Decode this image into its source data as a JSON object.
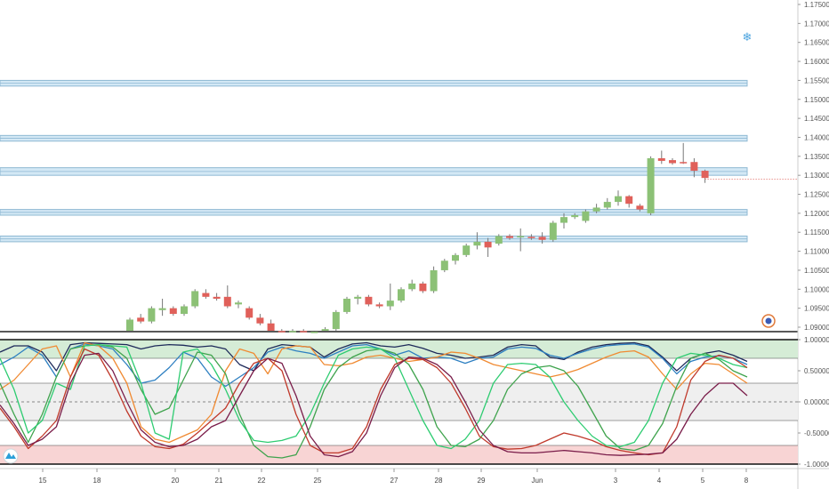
{
  "chart_data": [
    {
      "type": "candlestick",
      "title": "",
      "ylim": [
        1.0885,
        1.176
      ],
      "y_ticks": [
        "1.17500",
        "1.17000",
        "1.16500",
        "1.16000",
        "1.15500",
        "1.15000",
        "1.14500",
        "1.14000",
        "1.13500",
        "1.13000",
        "1.12500",
        "1.12000",
        "1.11500",
        "1.11000",
        "1.10500",
        "1.10000",
        "1.09500",
        "1.09000"
      ],
      "x_ticks": [
        "15",
        "18",
        "20",
        "21",
        "22",
        "25",
        "27",
        "28",
        "29",
        "Jun",
        "3",
        "4",
        "5",
        "8"
      ],
      "candles": [
        {
          "o": 1.089,
          "h": 1.0925,
          "l": 1.0885,
          "c": 1.092,
          "dir": "up"
        },
        {
          "o": 1.0925,
          "h": 1.0935,
          "l": 1.091,
          "c": 1.0915,
          "dir": "down"
        },
        {
          "o": 1.0915,
          "h": 1.0955,
          "l": 1.091,
          "c": 1.095,
          "dir": "up"
        },
        {
          "o": 1.0945,
          "h": 1.0975,
          "l": 1.093,
          "c": 1.095,
          "dir": "up"
        },
        {
          "o": 1.095,
          "h": 1.0955,
          "l": 1.093,
          "c": 1.0935,
          "dir": "down"
        },
        {
          "o": 1.0935,
          "h": 1.096,
          "l": 1.093,
          "c": 1.0955,
          "dir": "up"
        },
        {
          "o": 1.0955,
          "h": 1.1,
          "l": 1.095,
          "c": 1.0995,
          "dir": "up"
        },
        {
          "o": 1.099,
          "h": 1.1,
          "l": 1.0975,
          "c": 1.098,
          "dir": "down"
        },
        {
          "o": 1.098,
          "h": 1.099,
          "l": 1.097,
          "c": 1.0975,
          "dir": "down"
        },
        {
          "o": 1.098,
          "h": 1.101,
          "l": 1.095,
          "c": 1.0955,
          "dir": "down"
        },
        {
          "o": 1.096,
          "h": 1.097,
          "l": 1.095,
          "c": 1.0965,
          "dir": "up"
        },
        {
          "o": 1.095,
          "h": 1.0955,
          "l": 1.092,
          "c": 1.0925,
          "dir": "down"
        },
        {
          "o": 1.0925,
          "h": 1.0935,
          "l": 1.0905,
          "c": 1.091,
          "dir": "down"
        },
        {
          "o": 1.091,
          "h": 1.092,
          "l": 1.0885,
          "c": 1.089,
          "dir": "down"
        },
        {
          "o": 1.089,
          "h": 1.0895,
          "l": 1.088,
          "c": 1.0885,
          "dir": "down"
        },
        {
          "o": 1.0885,
          "h": 1.0895,
          "l": 1.088,
          "c": 1.089,
          "dir": "up"
        },
        {
          "o": 1.089,
          "h": 1.0895,
          "l": 1.088,
          "c": 1.0885,
          "dir": "down"
        },
        {
          "o": 1.0885,
          "h": 1.089,
          "l": 1.088,
          "c": 1.0888,
          "dir": "up"
        },
        {
          "o": 1.0888,
          "h": 1.09,
          "l": 1.088,
          "c": 1.0895,
          "dir": "up"
        },
        {
          "o": 1.0895,
          "h": 1.0945,
          "l": 1.089,
          "c": 1.094,
          "dir": "up"
        },
        {
          "o": 1.094,
          "h": 1.098,
          "l": 1.0935,
          "c": 1.0975,
          "dir": "up"
        },
        {
          "o": 1.0975,
          "h": 1.0985,
          "l": 1.096,
          "c": 1.098,
          "dir": "up"
        },
        {
          "o": 1.098,
          "h": 1.0985,
          "l": 1.0955,
          "c": 1.096,
          "dir": "down"
        },
        {
          "o": 1.096,
          "h": 1.0965,
          "l": 1.095,
          "c": 1.0955,
          "dir": "down"
        },
        {
          "o": 1.0955,
          "h": 1.1015,
          "l": 1.0945,
          "c": 1.097,
          "dir": "up"
        },
        {
          "o": 1.097,
          "h": 1.1005,
          "l": 1.0965,
          "c": 1.1,
          "dir": "up"
        },
        {
          "o": 1.1,
          "h": 1.1025,
          "l": 1.0995,
          "c": 1.1015,
          "dir": "up"
        },
        {
          "o": 1.1015,
          "h": 1.102,
          "l": 1.099,
          "c": 1.0995,
          "dir": "down"
        },
        {
          "o": 1.0995,
          "h": 1.106,
          "l": 1.099,
          "c": 1.105,
          "dir": "up"
        },
        {
          "o": 1.105,
          "h": 1.108,
          "l": 1.1045,
          "c": 1.1075,
          "dir": "up"
        },
        {
          "o": 1.1075,
          "h": 1.1095,
          "l": 1.1065,
          "c": 1.109,
          "dir": "up"
        },
        {
          "o": 1.109,
          "h": 1.112,
          "l": 1.1085,
          "c": 1.1115,
          "dir": "up"
        },
        {
          "o": 1.1115,
          "h": 1.115,
          "l": 1.1105,
          "c": 1.1125,
          "dir": "up"
        },
        {
          "o": 1.1125,
          "h": 1.1135,
          "l": 1.1085,
          "c": 1.111,
          "dir": "down"
        },
        {
          "o": 1.112,
          "h": 1.1145,
          "l": 1.1115,
          "c": 1.114,
          "dir": "up"
        },
        {
          "o": 1.114,
          "h": 1.1145,
          "l": 1.113,
          "c": 1.1135,
          "dir": "down"
        },
        {
          "o": 1.1138,
          "h": 1.116,
          "l": 1.11,
          "c": 1.114,
          "dir": "up"
        },
        {
          "o": 1.1138,
          "h": 1.1145,
          "l": 1.113,
          "c": 1.1135,
          "dir": "down"
        },
        {
          "o": 1.1138,
          "h": 1.115,
          "l": 1.112,
          "c": 1.113,
          "dir": "down"
        },
        {
          "o": 1.113,
          "h": 1.118,
          "l": 1.1125,
          "c": 1.1175,
          "dir": "up"
        },
        {
          "o": 1.1175,
          "h": 1.12,
          "l": 1.116,
          "c": 1.119,
          "dir": "up"
        },
        {
          "o": 1.119,
          "h": 1.12,
          "l": 1.1185,
          "c": 1.1195,
          "dir": "up"
        },
        {
          "o": 1.118,
          "h": 1.121,
          "l": 1.1175,
          "c": 1.1205,
          "dir": "up"
        },
        {
          "o": 1.1205,
          "h": 1.1225,
          "l": 1.12,
          "c": 1.1215,
          "dir": "up"
        },
        {
          "o": 1.1215,
          "h": 1.124,
          "l": 1.121,
          "c": 1.123,
          "dir": "up"
        },
        {
          "o": 1.123,
          "h": 1.126,
          "l": 1.122,
          "c": 1.1245,
          "dir": "up"
        },
        {
          "o": 1.1245,
          "h": 1.1248,
          "l": 1.1215,
          "c": 1.1225,
          "dir": "down"
        },
        {
          "o": 1.122,
          "h": 1.1225,
          "l": 1.1205,
          "c": 1.121,
          "dir": "down"
        },
        {
          "o": 1.12,
          "h": 1.135,
          "l": 1.1195,
          "c": 1.1345,
          "dir": "up"
        },
        {
          "o": 1.1345,
          "h": 1.1365,
          "l": 1.133,
          "c": 1.1338,
          "dir": "down"
        },
        {
          "o": 1.134,
          "h": 1.1345,
          "l": 1.1328,
          "c": 1.1332,
          "dir": "down"
        },
        {
          "o": 1.1335,
          "h": 1.1385,
          "l": 1.133,
          "c": 1.1335,
          "dir": "down"
        },
        {
          "o": 1.1335,
          "h": 1.1345,
          "l": 1.1295,
          "c": 1.1312,
          "dir": "down"
        },
        {
          "o": 1.1312,
          "h": 1.1315,
          "l": 1.128,
          "c": 1.1293,
          "dir": "down"
        }
      ],
      "price_line": 1.129,
      "zones": [
        {
          "top": 1.155,
          "bottom": 1.1535
        },
        {
          "top": 1.1405,
          "bottom": 1.139
        },
        {
          "top": 1.132,
          "bottom": 1.13
        },
        {
          "top": 1.121,
          "bottom": 1.1195
        },
        {
          "top": 1.114,
          "bottom": 1.1125
        }
      ],
      "colors": {
        "up": "#8cc176",
        "down": "#e0605a",
        "zone_fill": "#d3e8f5",
        "zone_line": "#8fb9d3",
        "price_line": "#e0605a",
        "snowflake": "#4aa3df"
      }
    },
    {
      "type": "line",
      "title": "",
      "ylim": [
        -1.05,
        1.05
      ],
      "y_ticks": [
        "1.00000",
        "0.50000",
        "0.00000",
        "-0.50000",
        "-1.00000"
      ],
      "bands": [
        {
          "from": 0.7,
          "to": 1.0,
          "color": "#d5ecd6"
        },
        {
          "from": -0.3,
          "to": 0.3,
          "color": "#efefef"
        },
        {
          "from": -1.0,
          "to": -0.7,
          "color": "#f8d4d4"
        }
      ],
      "series": [
        {
          "color": "#1e2a5a",
          "values": [
            0.8,
            0.9,
            0.9,
            0.8,
            0.5,
            0.92,
            0.95,
            0.94,
            0.93,
            0.92,
            0.85,
            0.9,
            0.92,
            0.91,
            0.88,
            0.9,
            0.85,
            0.6,
            0.5,
            0.85,
            0.92,
            0.9,
            0.88,
            0.72,
            0.85,
            0.93,
            0.95,
            0.9,
            0.88,
            0.92,
            0.86,
            0.78,
            0.75,
            0.7,
            0.72,
            0.75,
            0.88,
            0.92,
            0.9,
            0.72,
            0.68,
            0.8,
            0.88,
            0.92,
            0.94,
            0.95,
            0.9,
            0.72,
            0.5,
            0.7,
            0.78,
            0.82,
            0.75,
            0.65
          ]
        },
        {
          "color": "#2d7fc1",
          "values": [
            0.6,
            0.72,
            0.88,
            0.75,
            0.4,
            0.85,
            0.93,
            0.9,
            0.85,
            0.6,
            0.3,
            0.35,
            0.55,
            0.8,
            0.7,
            0.4,
            0.25,
            0.4,
            0.55,
            0.8,
            0.88,
            0.82,
            0.78,
            0.7,
            0.8,
            0.9,
            0.92,
            0.85,
            0.75,
            0.82,
            0.7,
            0.72,
            0.7,
            0.62,
            0.7,
            0.72,
            0.85,
            0.88,
            0.86,
            0.75,
            0.7,
            0.78,
            0.85,
            0.9,
            0.92,
            0.93,
            0.88,
            0.7,
            0.45,
            0.65,
            0.72,
            0.74,
            0.7,
            0.6
          ]
        },
        {
          "color": "#f08a32",
          "values": [
            0.2,
            0.35,
            0.6,
            0.85,
            0.9,
            0.4,
            0.95,
            0.9,
            0.7,
            0.3,
            -0.4,
            -0.6,
            -0.65,
            -0.55,
            -0.45,
            -0.2,
            0.5,
            0.85,
            0.78,
            0.45,
            0.85,
            0.9,
            0.88,
            0.6,
            0.58,
            0.62,
            0.72,
            0.75,
            0.7,
            0.65,
            0.68,
            0.72,
            0.8,
            0.78,
            0.7,
            0.6,
            0.55,
            0.5,
            0.45,
            0.4,
            0.45,
            0.52,
            0.62,
            0.72,
            0.8,
            0.82,
            0.72,
            0.45,
            0.2,
            0.45,
            0.62,
            0.6,
            0.45,
            0.3
          ]
        },
        {
          "color": "#3fa34d",
          "values": [
            0.3,
            -0.2,
            -0.65,
            -0.2,
            0.4,
            0.85,
            0.9,
            0.92,
            0.88,
            0.7,
            0.2,
            -0.2,
            -0.1,
            0.35,
            0.8,
            0.75,
            0.45,
            -0.2,
            -0.7,
            -0.88,
            -0.9,
            -0.85,
            -0.4,
            0.2,
            0.55,
            0.72,
            0.82,
            0.85,
            0.78,
            0.6,
            0.2,
            -0.4,
            -0.7,
            -0.72,
            -0.6,
            -0.3,
            0.2,
            0.45,
            0.55,
            0.58,
            0.5,
            0.25,
            -0.15,
            -0.55,
            -0.75,
            -0.78,
            -0.7,
            -0.35,
            0.25,
            0.7,
            0.78,
            0.68,
            0.5,
            0.4
          ]
        },
        {
          "color": "#2ecc71",
          "values": [
            0.7,
            0.2,
            -0.5,
            -0.3,
            0.3,
            0.2,
            0.9,
            0.92,
            0.9,
            0.88,
            0.3,
            -0.5,
            -0.6,
            0.8,
            0.85,
            0.6,
            0.2,
            -0.3,
            -0.62,
            -0.65,
            -0.62,
            -0.55,
            -0.2,
            0.3,
            0.75,
            0.85,
            0.88,
            0.85,
            0.7,
            0.2,
            -0.3,
            -0.7,
            -0.75,
            -0.6,
            -0.3,
            0.3,
            0.6,
            0.62,
            0.6,
            0.4,
            0.0,
            -0.3,
            -0.55,
            -0.7,
            -0.72,
            -0.65,
            -0.3,
            0.3,
            0.7,
            0.78,
            0.75,
            0.7,
            0.6,
            0.55
          ]
        },
        {
          "color": "#c0392b",
          "values": [
            -0.1,
            -0.4,
            -0.75,
            -0.55,
            -0.3,
            0.4,
            0.85,
            0.75,
            0.35,
            -0.15,
            -0.55,
            -0.72,
            -0.75,
            -0.68,
            -0.5,
            -0.3,
            -0.1,
            0.3,
            0.62,
            0.7,
            0.5,
            -0.2,
            -0.7,
            -0.82,
            -0.82,
            -0.75,
            -0.4,
            0.2,
            0.6,
            0.7,
            0.68,
            0.55,
            0.3,
            -0.1,
            -0.55,
            -0.72,
            -0.76,
            -0.75,
            -0.7,
            -0.6,
            -0.5,
            -0.55,
            -0.62,
            -0.72,
            -0.78,
            -0.82,
            -0.85,
            -0.82,
            -0.4,
            0.35,
            0.65,
            0.75,
            0.7,
            0.55
          ]
        },
        {
          "color": "#7a1d4a",
          "values": [
            -0.05,
            -0.35,
            -0.7,
            -0.6,
            -0.4,
            0.3,
            0.75,
            0.78,
            0.5,
            0.0,
            -0.45,
            -0.65,
            -0.72,
            -0.7,
            -0.6,
            -0.4,
            -0.3,
            0.1,
            0.5,
            0.7,
            0.62,
            0.1,
            -0.55,
            -0.85,
            -0.88,
            -0.8,
            -0.5,
            0.1,
            0.55,
            0.72,
            0.7,
            0.6,
            0.4,
            0.0,
            -0.45,
            -0.7,
            -0.8,
            -0.82,
            -0.82,
            -0.8,
            -0.78,
            -0.8,
            -0.82,
            -0.85,
            -0.86,
            -0.85,
            -0.84,
            -0.82,
            -0.6,
            -0.2,
            0.1,
            0.3,
            0.3,
            0.1
          ]
        }
      ]
    }
  ],
  "icons": {
    "snowflake": "snowflake-icon",
    "settings": "settings-circle-icon",
    "logo": "tradingview-logo-icon"
  }
}
